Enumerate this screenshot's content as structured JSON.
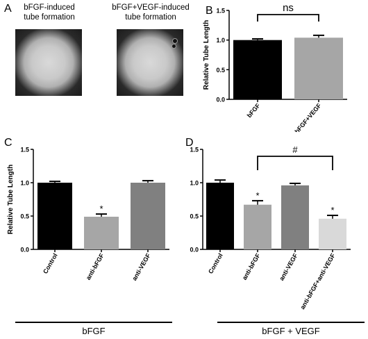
{
  "panel_a": {
    "letter": "A",
    "labels": [
      [
        "bFGF-induced",
        "tube formation"
      ],
      [
        "bFGF+VEGF-induced",
        "tube formation"
      ]
    ]
  },
  "chart_data": [
    {
      "panel": "B",
      "type": "bar",
      "categories": [
        "bFGF",
        "bFGF+VEGF"
      ],
      "values": [
        1.0,
        1.04
      ],
      "errors": [
        0.02,
        0.04
      ],
      "colors": [
        "#000000",
        "#a6a6a6"
      ],
      "ylabel": "Relative Tube Length",
      "ylim": [
        0,
        1.5
      ],
      "yticks": [
        "0.0",
        "0.5",
        "1.0",
        "1.5"
      ],
      "significance": [
        {
          "from": 0,
          "to": 1,
          "label": "ns"
        }
      ],
      "stars": [
        "",
        ""
      ]
    },
    {
      "panel": "C",
      "type": "bar",
      "categories": [
        "Control",
        "anti-bFGF",
        "anti-VEGF"
      ],
      "values": [
        1.0,
        0.49,
        1.0
      ],
      "errors": [
        0.02,
        0.04,
        0.03
      ],
      "colors": [
        "#000000",
        "#a6a6a6",
        "#808080"
      ],
      "ylabel": "Relative Tube Length",
      "ylim": [
        0,
        1.5
      ],
      "yticks": [
        "0.0",
        "0.5",
        "1.0",
        "1.5"
      ],
      "significance": [],
      "stars": [
        "",
        "*",
        ""
      ],
      "group_label": "bFGF"
    },
    {
      "panel": "D",
      "type": "bar",
      "categories": [
        "Control",
        "anti-bFGF",
        "anti-VEGF",
        "anti-bFGF+anti-VEGF"
      ],
      "values": [
        1.0,
        0.67,
        0.96,
        0.46
      ],
      "errors": [
        0.04,
        0.06,
        0.03,
        0.05
      ],
      "colors": [
        "#000000",
        "#a6a6a6",
        "#808080",
        "#d9d9d9"
      ],
      "ylabel": "Relative Tube Length",
      "ylim": [
        0,
        1.5
      ],
      "yticks": [
        "0.0",
        "0.5",
        "1.0",
        "1.5"
      ],
      "significance": [
        {
          "from": 1,
          "to": 3,
          "label": "#"
        }
      ],
      "stars": [
        "",
        "*",
        "",
        "*"
      ],
      "group_label": "bFGF + VEGF"
    }
  ]
}
